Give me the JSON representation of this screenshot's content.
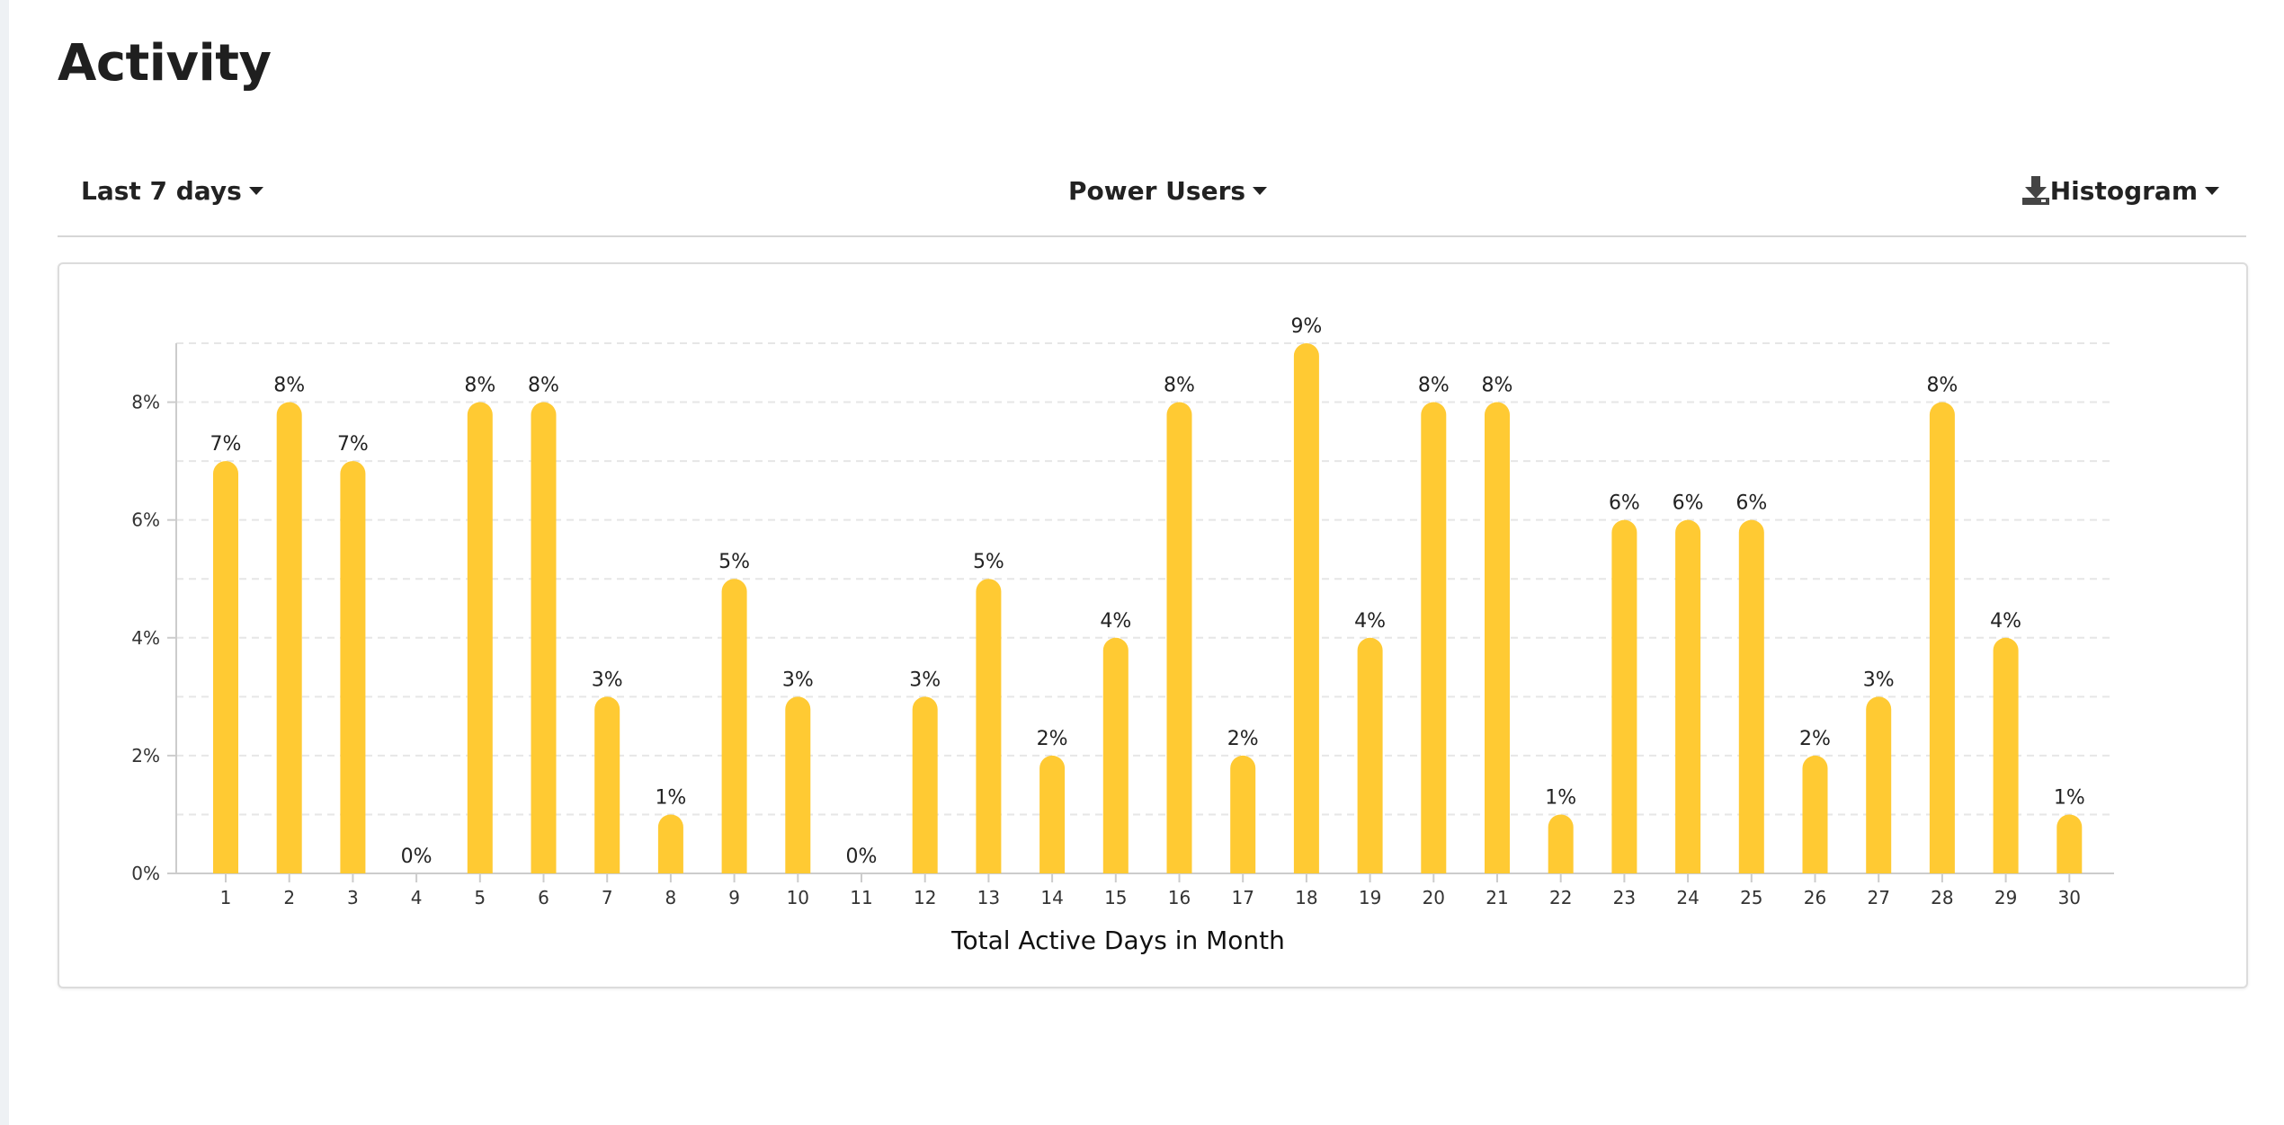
{
  "page": {
    "title": "Activity"
  },
  "toolbar": {
    "range_label": "Last 7 days",
    "segment_label": "Power Users",
    "view_label": "Histogram",
    "download_icon": "download-icon"
  },
  "colors": {
    "bar": "#FFCA33",
    "grid": "#e6e6e6",
    "axis": "#cccccc"
  },
  "chart_data": {
    "type": "bar",
    "categories": [
      "1",
      "2",
      "3",
      "4",
      "5",
      "6",
      "7",
      "8",
      "9",
      "10",
      "11",
      "12",
      "13",
      "14",
      "15",
      "16",
      "17",
      "18",
      "19",
      "20",
      "21",
      "22",
      "23",
      "24",
      "25",
      "26",
      "27",
      "28",
      "29",
      "30"
    ],
    "values": [
      7,
      8,
      7,
      0,
      8,
      8,
      3,
      1,
      5,
      3,
      0,
      3,
      5,
      2,
      4,
      8,
      2,
      9,
      4,
      8,
      8,
      1,
      6,
      6,
      6,
      2,
      3,
      8,
      4,
      1
    ],
    "data_labels": [
      "7%",
      "8%",
      "7%",
      "0%",
      "8%",
      "8%",
      "3%",
      "1%",
      "5%",
      "3%",
      "0%",
      "3%",
      "5%",
      "2%",
      "4%",
      "8%",
      "2%",
      "9%",
      "4%",
      "8%",
      "8%",
      "1%",
      "6%",
      "6%",
      "6%",
      "2%",
      "3%",
      "8%",
      "4%",
      "1%"
    ],
    "y_ticks": [
      0,
      2,
      4,
      6,
      8
    ],
    "y_tick_labels": [
      "0%",
      "2%",
      "4%",
      "6%",
      "8%"
    ],
    "ylim": [
      0,
      9
    ],
    "xlabel": "Total Active Days in Month",
    "ylabel": "",
    "grid": true,
    "legend": "none"
  }
}
